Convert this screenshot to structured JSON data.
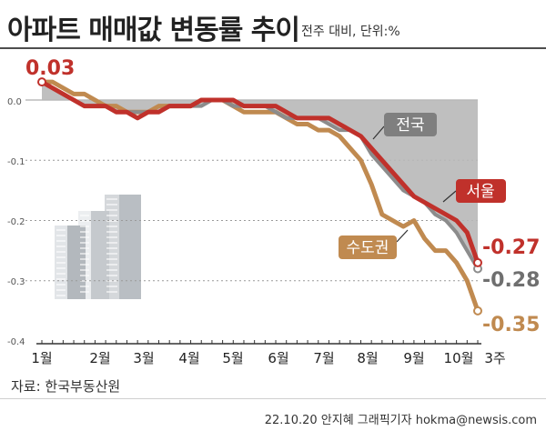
{
  "header": {
    "title": "아파트 매매값 변동률 추이",
    "subtitle": "전주 대비, 단위:%"
  },
  "footer": {
    "source": "자료: 한국부동산원",
    "credit": "22.10.20 안지혜 그래픽기자  hokma@newsis.com"
  },
  "chart_data": {
    "type": "line",
    "title": "아파트 매매값 변동률 추이",
    "unit": "%",
    "ylim": [
      -0.4,
      0.0
    ],
    "y_ticks": [
      "0.0",
      "-0.1",
      "-0.2",
      "-0.3",
      "-0.4"
    ],
    "x_tick_labels": [
      "1월",
      "2월",
      "3월",
      "4월",
      "5월",
      "6월",
      "7월",
      "8월",
      "9월",
      "10월",
      "3주"
    ],
    "x_tick_positions": [
      0,
      4.2,
      8.5,
      12.8,
      17.1,
      21.4,
      25.7,
      30,
      34.3,
      38.6,
      41
    ],
    "grid": true,
    "series": [
      {
        "name": "전국",
        "color": "#8c8c8c",
        "fill": "#b8b8b8",
        "end_label": "-0.28",
        "values": [
          0.03,
          0.02,
          0.01,
          0.0,
          -0.01,
          -0.01,
          -0.01,
          -0.02,
          -0.02,
          -0.02,
          -0.02,
          -0.02,
          -0.01,
          -0.01,
          -0.01,
          -0.01,
          0.0,
          0.0,
          -0.01,
          -0.01,
          -0.01,
          -0.01,
          -0.02,
          -0.03,
          -0.03,
          -0.03,
          -0.03,
          -0.04,
          -0.05,
          -0.05,
          -0.06,
          -0.09,
          -0.11,
          -0.13,
          -0.15,
          -0.16,
          -0.17,
          -0.19,
          -0.2,
          -0.22,
          -0.25,
          -0.28
        ]
      },
      {
        "name": "서울",
        "color": "#c0312b",
        "start_label": "0.03",
        "end_label": "-0.27",
        "values": [
          0.03,
          0.02,
          0.01,
          0.0,
          -0.01,
          -0.01,
          -0.01,
          -0.02,
          -0.02,
          -0.03,
          -0.02,
          -0.02,
          -0.01,
          -0.01,
          -0.01,
          0.0,
          0.0,
          0.0,
          0.0,
          -0.01,
          -0.01,
          -0.01,
          -0.01,
          -0.02,
          -0.03,
          -0.03,
          -0.03,
          -0.03,
          -0.04,
          -0.05,
          -0.06,
          -0.08,
          -0.1,
          -0.12,
          -0.14,
          -0.16,
          -0.17,
          -0.18,
          -0.19,
          -0.2,
          -0.22,
          -0.27
        ]
      },
      {
        "name": "수도권",
        "color": "#c08a50",
        "end_label": "-0.35",
        "values": [
          0.03,
          0.03,
          0.02,
          0.01,
          0.01,
          0.0,
          -0.01,
          -0.01,
          -0.02,
          -0.02,
          -0.02,
          -0.01,
          -0.01,
          -0.01,
          -0.01,
          0.0,
          0.0,
          0.0,
          -0.01,
          -0.02,
          -0.02,
          -0.02,
          -0.02,
          -0.03,
          -0.04,
          -0.04,
          -0.05,
          -0.05,
          -0.06,
          -0.08,
          -0.1,
          -0.14,
          -0.19,
          -0.2,
          -0.21,
          -0.2,
          -0.23,
          -0.25,
          -0.25,
          -0.27,
          -0.3,
          -0.35
        ]
      }
    ]
  }
}
